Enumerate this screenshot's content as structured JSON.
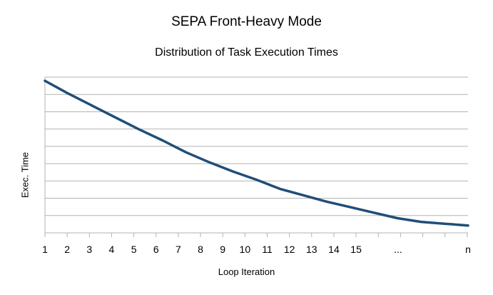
{
  "chart_data": {
    "type": "line",
    "title": "SEPA Front-Heavy Mode",
    "subtitle": "Distribution of Task Execution Times",
    "xlabel": "Loop Iteration",
    "ylabel": "Exec. Time",
    "x_ticks": [
      "1",
      "2",
      "3",
      "4",
      "5",
      "6",
      "7",
      "8",
      "9",
      "10",
      "11",
      "12",
      "13",
      "14",
      "15",
      "...",
      "n"
    ],
    "ylim": [
      0,
      8.5
    ],
    "grid": true,
    "y_ticks_labeled": false,
    "series": [
      {
        "color": "#1f4e79",
        "points": [
          {
            "x": 1,
            "y": 8.3
          },
          {
            "x": 2,
            "y": 7.6
          },
          {
            "x": 3,
            "y": 6.95
          },
          {
            "x": 4,
            "y": 6.3
          },
          {
            "x": 5,
            "y": 5.65
          },
          {
            "x": 6,
            "y": 5.05
          },
          {
            "x": 7,
            "y": 4.4
          },
          {
            "x": 8,
            "y": 3.85
          },
          {
            "x": 9,
            "y": 3.35
          },
          {
            "x": 10,
            "y": 2.9
          },
          {
            "x": 11,
            "y": 2.4
          },
          {
            "x": 12,
            "y": 2.05
          },
          {
            "x": 13,
            "y": 1.7
          },
          {
            "x": 14,
            "y": 1.4
          },
          {
            "x": 15,
            "y": 1.1
          },
          {
            "x": 16,
            "y": 0.8
          },
          {
            "x": 17,
            "y": 0.6
          },
          {
            "x": 18,
            "y": 0.5
          },
          {
            "x": 19,
            "y": 0.4
          }
        ]
      }
    ]
  }
}
